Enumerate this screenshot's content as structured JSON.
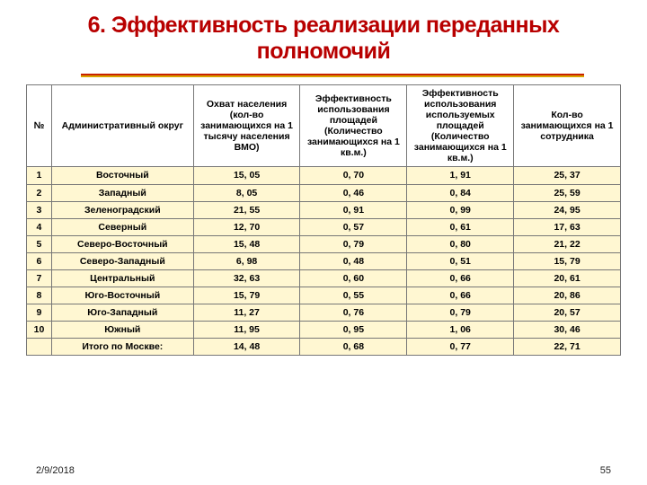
{
  "title": {
    "text": "6. Эффективность реализации переданных полномочий",
    "color": "#b80000",
    "fontsize": 25
  },
  "underline": {
    "top_color": "#c82200",
    "bottom_color": "#d9a300"
  },
  "table": {
    "header_bg": "#ffffff",
    "cell_bg": "#fff7d2",
    "border_color": "#777777",
    "columns": [
      "№",
      "Административный округ",
      "Охват населения (кол-во занимающихся на 1 тысячу населения ВМО)",
      "Эффективность использования площадей (Количество занимающихся на 1 кв.м.)",
      "Эффективность использования используемых площадей (Количество занимающихся на 1 кв.м.)",
      "Кол-во занимающихся на 1 сотрудника"
    ],
    "rows": [
      [
        "1",
        "Восточный",
        "15, 05",
        "0, 70",
        "1, 91",
        "25, 37"
      ],
      [
        "2",
        "Западный",
        "8, 05",
        "0, 46",
        "0, 84",
        "25, 59"
      ],
      [
        "3",
        "Зеленоградский",
        "21, 55",
        "0, 91",
        "0, 99",
        "24, 95"
      ],
      [
        "4",
        "Северный",
        "12, 70",
        "0, 57",
        "0, 61",
        "17, 63"
      ],
      [
        "5",
        "Северо-Восточный",
        "15, 48",
        "0, 79",
        "0, 80",
        "21, 22"
      ],
      [
        "6",
        "Северо-Западный",
        "6, 98",
        "0, 48",
        "0, 51",
        "15, 79"
      ],
      [
        "7",
        "Центральный",
        "32, 63",
        "0, 60",
        "0, 66",
        "20, 61"
      ],
      [
        "8",
        "Юго-Восточный",
        "15, 79",
        "0, 55",
        "0, 66",
        "20, 86"
      ],
      [
        "9",
        "Юго-Западный",
        "11, 27",
        "0, 76",
        "0, 79",
        "20, 57"
      ],
      [
        "10",
        "Южный",
        "11, 95",
        "0, 95",
        "1, 06",
        "30, 46"
      ]
    ],
    "total_row": [
      "",
      "Итого по Москве:",
      "14, 48",
      "0, 68",
      "0, 77",
      "22, 71"
    ]
  },
  "footer": {
    "date": "2/9/2018",
    "page": "55"
  }
}
